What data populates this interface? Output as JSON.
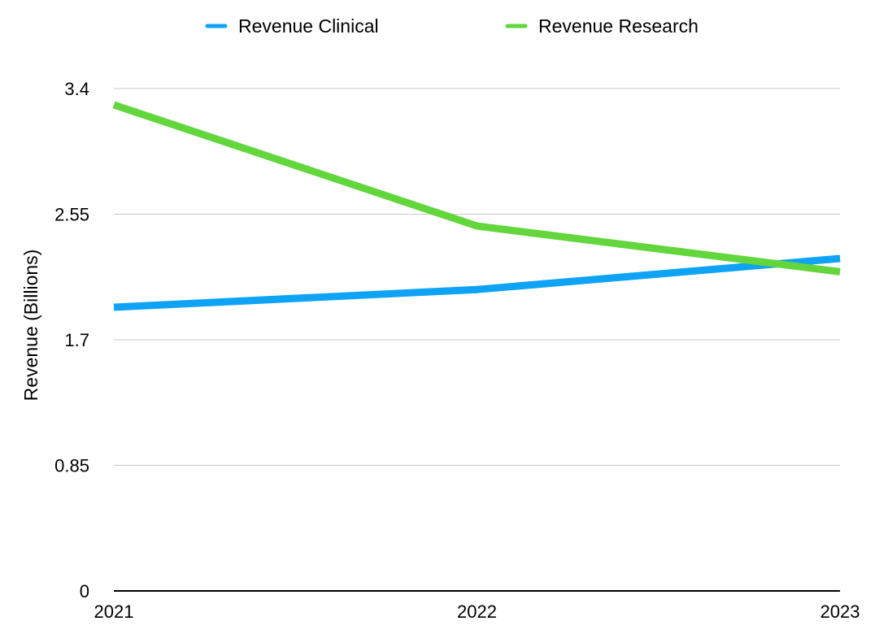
{
  "chart_data": {
    "type": "line",
    "title": "",
    "xlabel": "",
    "ylabel": "Revenue (Billions)",
    "x": [
      "2021",
      "2022",
      "2023"
    ],
    "ylim": [
      0,
      3.4
    ],
    "yticks": [
      "0",
      "0.85",
      "1.7",
      "2.55",
      "3.4"
    ],
    "grid": true,
    "legend_position": "top",
    "series": [
      {
        "name": "Revenue Clinical",
        "color": "#0FA3F5",
        "values": [
          1.92,
          2.04,
          2.25
        ]
      },
      {
        "name": "Revenue Research",
        "color": "#62D63C",
        "values": [
          3.29,
          2.47,
          2.16
        ]
      }
    ]
  }
}
